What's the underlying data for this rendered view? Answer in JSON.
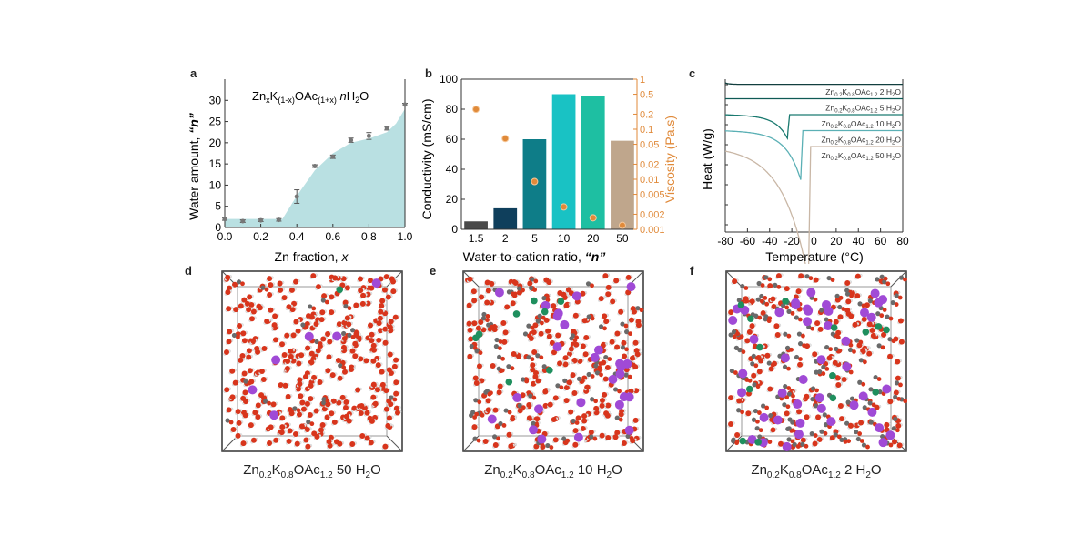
{
  "panels": {
    "a": {
      "label": "a"
    },
    "b": {
      "label": "b"
    },
    "c": {
      "label": "c"
    },
    "d": {
      "label": "d",
      "caption": {
        "base": "Zn",
        "s1": "0.2",
        "k": "K",
        "s2": "0.8",
        "oac": "OAc",
        "s3": "1.2",
        "n": " 50 H",
        "s4": "2",
        "o": "O"
      }
    },
    "e": {
      "label": "e",
      "caption": {
        "base": "Zn",
        "s1": "0.2",
        "k": "K",
        "s2": "0.8",
        "oac": "OAc",
        "s3": "1.2",
        "n": " 10 H",
        "s4": "2",
        "o": "O"
      }
    },
    "f": {
      "label": "f",
      "caption": {
        "base": "Zn",
        "s1": "0.2",
        "k": "K",
        "s2": "0.8",
        "oac": "OAc",
        "s3": "1.2",
        "n": " 2 H",
        "s4": "2",
        "o": "O"
      }
    }
  },
  "colors": {
    "fill_a": "#b9e0e2",
    "viscosity": "#e08a3a",
    "axis": "#333333",
    "atom_O": "#d8351c",
    "atom_K": "#a04ad6",
    "atom_Zn": "#1f8f5e",
    "atom_C": "#6a6a6a",
    "atom_H": "#e6e6e6"
  },
  "chart_data": [
    {
      "id": "a",
      "type": "area",
      "title": "ZnxK(1-x)OAc(1+x) nH2O",
      "title_parts": {
        "zn": "Zn",
        "x": "x",
        "k": "K",
        "sub1": "(1-x)",
        "oac": "OAc",
        "sub2": "(1+x)",
        "n": "n",
        "h": "H",
        "two": "2",
        "o": "O"
      },
      "xlabel": "Zn fraction, x",
      "xlabel_parts": {
        "main": "Zn fraction, ",
        "var": "x"
      },
      "ylabel": "Water amount, \"n\"",
      "ylabel_parts": {
        "main": "Water amount, ",
        "var": "“n”"
      },
      "xlim": [
        0,
        1.0
      ],
      "ylim": [
        0,
        35
      ],
      "xticks": [
        "0.0",
        "0.2",
        "0.4",
        "0.6",
        "0.8",
        "1.0"
      ],
      "xtick_values": [
        0,
        0.2,
        0.4,
        0.6,
        0.8,
        1.0
      ],
      "yticks": [
        "0",
        "5",
        "10",
        "15",
        "20",
        "25",
        "30"
      ],
      "ytick_values": [
        0,
        5,
        10,
        15,
        20,
        25,
        30
      ],
      "x": [
        0.0,
        0.1,
        0.2,
        0.3,
        0.4,
        0.5,
        0.6,
        0.7,
        0.8,
        0.9,
        1.0
      ],
      "y": [
        2.0,
        1.5,
        1.7,
        1.8,
        7.3,
        14.5,
        16.7,
        20.6,
        21.6,
        23.4,
        29.0
      ],
      "err": [
        0.3,
        0.3,
        0.3,
        0.3,
        1.6,
        0.3,
        0.4,
        0.5,
        0.8,
        0.4,
        0.3
      ],
      "area_boundary": {
        "x": [
          0.0,
          0.3,
          0.32,
          0.4,
          0.5,
          0.6,
          0.7,
          0.8,
          0.9,
          0.95,
          1.0
        ],
        "y": [
          2.0,
          2.0,
          2.0,
          7.5,
          13.5,
          17.5,
          20.0,
          21.0,
          22.5,
          24.5,
          28.0
        ]
      }
    },
    {
      "id": "b",
      "type": "bar",
      "xlabel": "Water-to-cation ratio, \"n\"",
      "xlabel_parts": {
        "main": "Water-to-cation ratio, ",
        "var": "“n”"
      },
      "ylabel": "Conductivity (mS/cm)",
      "y2label": "Viscosity (Pa.s)",
      "categories": [
        "1.5",
        "2",
        "5",
        "10",
        "20",
        "50"
      ],
      "ylim": [
        0,
        100
      ],
      "yticks": [
        "0",
        "20",
        "40",
        "60",
        "80",
        "100"
      ],
      "ytick_values": [
        0,
        20,
        40,
        60,
        80,
        100
      ],
      "y2scale": "log",
      "y2lim": [
        0.001,
        1
      ],
      "y2ticks": [
        "1",
        "0.5",
        "0.2",
        "0.1",
        "0.05",
        "0.02",
        "0.01",
        "0.005",
        "0.002",
        "0.001"
      ],
      "y2tick_values": [
        1,
        0.5,
        0.2,
        0.1,
        0.05,
        0.02,
        0.01,
        0.005,
        0.002,
        0.001
      ],
      "series": [
        {
          "name": "Conductivity",
          "type": "bar",
          "values": [
            5.3,
            14,
            60,
            90,
            89,
            59
          ],
          "colors": [
            "#4a4a4a",
            "#0f3f5c",
            "#0e7d88",
            "#19c2c4",
            "#1ebfa2",
            "#bfa68c"
          ]
        },
        {
          "name": "Viscosity",
          "type": "scatter",
          "axis": "y2",
          "values": [
            0.25,
            0.065,
            0.009,
            0.0028,
            0.0017,
            0.0012
          ]
        }
      ]
    },
    {
      "id": "c",
      "type": "line",
      "xlabel": "Temperature (°C)",
      "ylabel": "Heat (W/g)",
      "xlim": [
        -80,
        80
      ],
      "xticks": [
        "-80",
        "-60",
        "-40",
        "-20",
        "0",
        "20",
        "40",
        "60",
        "80"
      ],
      "xtick_values": [
        -80,
        -60,
        -40,
        -20,
        0,
        20,
        40,
        60,
        80
      ],
      "yticks": [],
      "series": [
        {
          "name": "Zn0.2K0.8OAc1.2 2 H2O",
          "label_n": "2",
          "color": "#123f3f",
          "offset": 0,
          "peak_t": null,
          "depth": 0,
          "baseline_dip": 0.8
        },
        {
          "name": "Zn0.2K0.8OAc1.2 5 H2O",
          "label_n": "5",
          "color": "#0f5a55",
          "offset": 1,
          "peak_t": null,
          "depth": 0,
          "baseline_dip": 0
        },
        {
          "name": "Zn0.2K0.8OAc1.2 10 H2O",
          "label_n": "10",
          "color": "#1b7a70",
          "offset": 2,
          "peak_t": -24,
          "depth": 1.2,
          "baseline_dip": 0
        },
        {
          "name": "Zn0.2K0.8OAc1.2 20 H2O",
          "label_n": "20",
          "color": "#5bb0b5",
          "offset": 3,
          "peak_t": -12,
          "depth": 2.6,
          "baseline_dip": 0
        },
        {
          "name": "Zn0.2K0.8OAc1.2 50 H2O",
          "label_n": "50",
          "color": "#c9b7a6",
          "offset": 4,
          "peak_t": -5,
          "depth": 7.2,
          "baseline_dip": 0
        }
      ],
      "legend_parts": {
        "zn": "Zn",
        "s1": "0.2",
        "k": "K",
        "s2": "0.8",
        "oac": "OAc",
        "s3": "1.2",
        "h": "H",
        "two": "2",
        "o": "O"
      }
    }
  ]
}
